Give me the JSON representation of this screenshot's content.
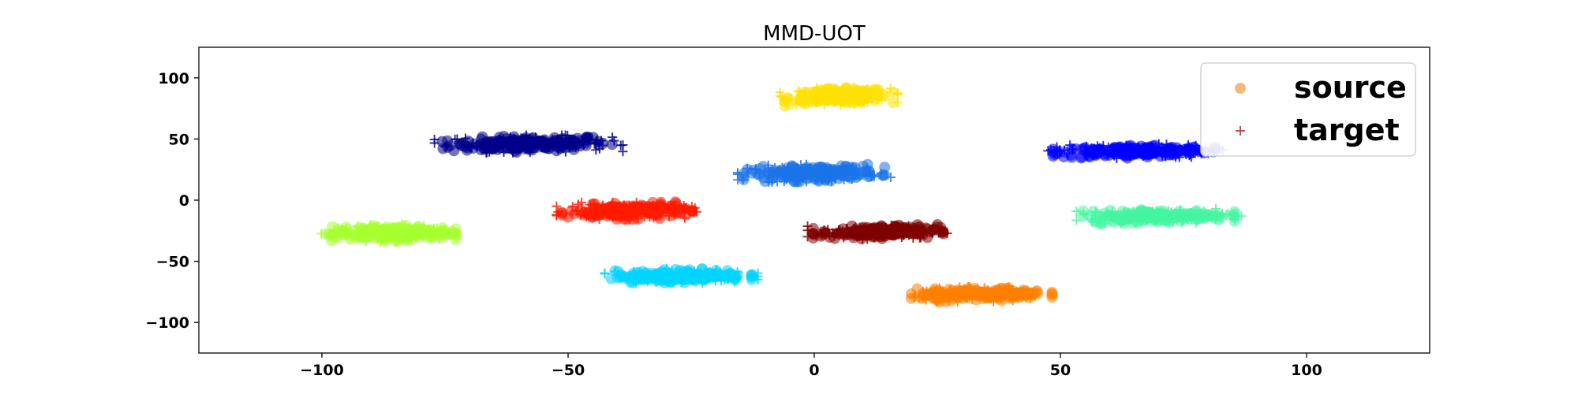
{
  "chart_data": {
    "type": "scatter",
    "title": "MMD-UOT",
    "xlabel": "",
    "ylabel": "",
    "xlim": [
      -125,
      125
    ],
    "ylim": [
      -125,
      125
    ],
    "xticks": [
      -100,
      -50,
      0,
      50,
      100
    ],
    "yticks": [
      -100,
      -50,
      0,
      50,
      100
    ],
    "x_tick_labels": [
      "−100",
      "−50",
      "0",
      "50",
      "100"
    ],
    "y_tick_labels": [
      "−100",
      "−50",
      "0",
      "50",
      "100"
    ],
    "grid": false,
    "legend": {
      "placement": "top-right",
      "entries": [
        {
          "label": "source",
          "marker": "circle",
          "color": "#f5a04e"
        },
        {
          "label": "target",
          "marker": "plus",
          "color": "#b5525a"
        }
      ]
    },
    "clusters": [
      {
        "color": "#00008b",
        "center": [
          -58,
          46
        ],
        "spread": [
          16,
          6
        ]
      },
      {
        "color": "#fee100",
        "center": [
          5,
          85
        ],
        "spread": [
          10,
          6
        ]
      },
      {
        "color": "#0000ff",
        "center": [
          65,
          40
        ],
        "spread": [
          15,
          5
        ]
      },
      {
        "color": "#1a73e8",
        "center": [
          0,
          22
        ],
        "spread": [
          13,
          6
        ]
      },
      {
        "color": "#ff1a00",
        "center": [
          -38,
          -9
        ],
        "spread": [
          12,
          6
        ]
      },
      {
        "color": "#800000",
        "center": [
          13,
          -26
        ],
        "spread": [
          12,
          5
        ]
      },
      {
        "color": "#45f5a0",
        "center": [
          70,
          -13
        ],
        "spread": [
          14,
          5
        ]
      },
      {
        "color": "#a6ff2e",
        "center": [
          -86,
          -27
        ],
        "spread": [
          12,
          6
        ]
      },
      {
        "color": "#00d4ff",
        "center": [
          -27,
          -62
        ],
        "spread": [
          13,
          5
        ]
      },
      {
        "color": "#ff7f00",
        "center": [
          34,
          -77
        ],
        "spread": [
          13,
          5
        ]
      }
    ]
  }
}
